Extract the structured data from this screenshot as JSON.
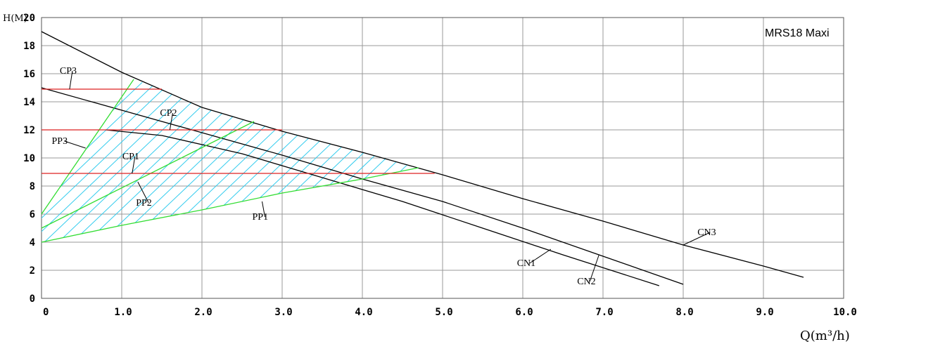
{
  "chart_data": {
    "type": "line",
    "title": "MRS18 Maxi",
    "xlabel": "Q(m³/h)",
    "ylabel": "H(M)",
    "xlim": [
      0,
      10
    ],
    "ylim": [
      0,
      20
    ],
    "grid": true,
    "x_tick_labels": [
      "0",
      "1.0",
      "2.0",
      "3.0",
      "4.0",
      "5.0",
      "6.0",
      "7.0",
      "8.0",
      "9.0",
      "10.0"
    ],
    "y_tick_labels": [
      "0",
      "2",
      "4",
      "6",
      "8",
      "10",
      "12",
      "14",
      "16",
      "18",
      "20"
    ],
    "colors": {
      "curve": "#000000",
      "proportional": "#33dd33",
      "constant": "#dd2222",
      "hatch": "#33ccee",
      "grid": "#999999"
    },
    "series": [
      {
        "name": "CN3",
        "kind": "max-curve",
        "points": [
          [
            0,
            19
          ],
          [
            1,
            16.1
          ],
          [
            2,
            13.6
          ],
          [
            3,
            11.9
          ],
          [
            4,
            10.4
          ],
          [
            5,
            8.8
          ],
          [
            6,
            7.1
          ],
          [
            7,
            5.5
          ],
          [
            8,
            3.8
          ],
          [
            9,
            2.3
          ],
          [
            9.5,
            1.5
          ]
        ]
      },
      {
        "name": "CN2",
        "kind": "max-curve",
        "points": [
          [
            0,
            15
          ],
          [
            1,
            13.4
          ],
          [
            2,
            11.8
          ],
          [
            3,
            10.2
          ],
          [
            4,
            8.5
          ],
          [
            5,
            6.9
          ],
          [
            6,
            5.0
          ],
          [
            7,
            3.0
          ],
          [
            8,
            1.0
          ]
        ]
      },
      {
        "name": "CN1",
        "kind": "max-curve",
        "points": [
          [
            0.8,
            12.0
          ],
          [
            1.5,
            11.6
          ],
          [
            2.5,
            10.3
          ],
          [
            3.5,
            8.6
          ],
          [
            4.5,
            6.9
          ],
          [
            5.5,
            5.0
          ],
          [
            6.5,
            3.1
          ],
          [
            7.7,
            0.9
          ]
        ]
      },
      {
        "name": "PP3",
        "kind": "proportional",
        "points": [
          [
            0,
            6
          ],
          [
            1.15,
            15.6
          ]
        ]
      },
      {
        "name": "PP2",
        "kind": "proportional",
        "points": [
          [
            0,
            5
          ],
          [
            2.65,
            12.6
          ]
        ]
      },
      {
        "name": "PP1",
        "kind": "proportional",
        "points": [
          [
            0,
            4
          ],
          [
            1,
            5.2
          ],
          [
            2,
            6.3
          ],
          [
            3,
            7.5
          ],
          [
            4,
            8.5
          ],
          [
            4.7,
            9.3
          ]
        ]
      },
      {
        "name": "CP3",
        "kind": "constant",
        "points": [
          [
            0,
            14.9
          ],
          [
            1.5,
            14.9
          ]
        ]
      },
      {
        "name": "CP2",
        "kind": "constant",
        "points": [
          [
            0,
            12.0
          ],
          [
            3.0,
            12.0
          ]
        ]
      },
      {
        "name": "CP1",
        "kind": "constant",
        "points": [
          [
            0,
            8.9
          ],
          [
            4.9,
            8.9
          ]
        ]
      }
    ],
    "annotations": [
      {
        "text": "CN3",
        "at": [
          8.3,
          4.5
        ],
        "arrow_to": [
          8.0,
          3.8
        ]
      },
      {
        "text": "CN2",
        "at": [
          6.8,
          1.0
        ],
        "arrow_to": [
          6.95,
          3.1
        ]
      },
      {
        "text": "CN1",
        "at": [
          6.05,
          2.3
        ],
        "arrow_to": [
          6.35,
          3.5
        ]
      },
      {
        "text": "CP3",
        "at": [
          0.35,
          16.0
        ],
        "arrow_to": [
          0.35,
          14.9
        ]
      },
      {
        "text": "CP2",
        "at": [
          1.6,
          13.0
        ],
        "arrow_to": [
          1.6,
          12.0
        ]
      },
      {
        "text": "CP1",
        "at": [
          1.13,
          9.9
        ],
        "arrow_to": [
          1.13,
          8.9
        ]
      },
      {
        "text": "PP3",
        "at": [
          0.25,
          11.0
        ],
        "arrow_to": [
          0.55,
          10.7
        ]
      },
      {
        "text": "PP2",
        "at": [
          1.3,
          6.6
        ],
        "arrow_to": [
          1.2,
          8.3
        ]
      },
      {
        "text": "PP1",
        "at": [
          2.75,
          5.6
        ],
        "arrow_to": [
          2.75,
          6.9
        ]
      }
    ],
    "hatch_region": [
      [
        0,
        6
      ],
      [
        1.15,
        15.6
      ],
      [
        1.5,
        14.9
      ],
      [
        2,
        13.6
      ],
      [
        3,
        11.9
      ],
      [
        4,
        10.4
      ],
      [
        4.9,
        8.9
      ],
      [
        4.7,
        9.3
      ],
      [
        4,
        8.5
      ],
      [
        3,
        7.5
      ],
      [
        2,
        6.3
      ],
      [
        1,
        5.2
      ],
      [
        0,
        4
      ]
    ]
  }
}
